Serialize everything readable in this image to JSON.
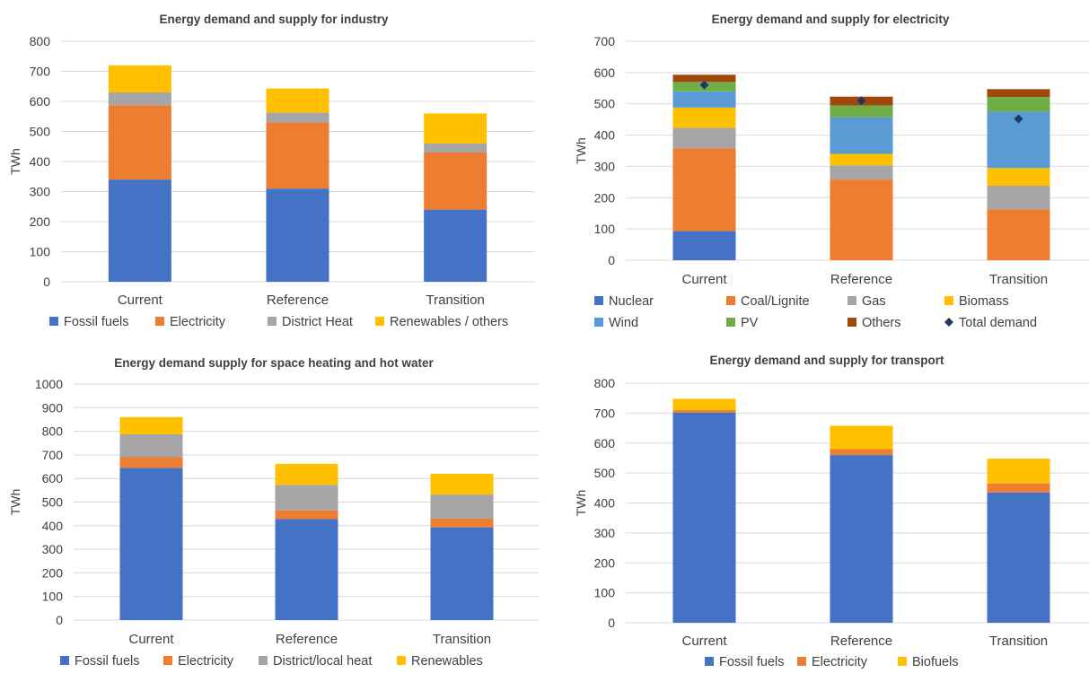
{
  "chart_data": [
    {
      "type": "bar",
      "stacked": true,
      "title": "Energy demand and supply for industry",
      "ylabel": "TWh",
      "ylim": [
        0,
        800
      ],
      "yticks": [
        0,
        100,
        200,
        300,
        400,
        500,
        600,
        700,
        800
      ],
      "grid": true,
      "legend_position": "bottom",
      "categories": [
        "Current",
        "Reference",
        "Transition"
      ],
      "series": [
        {
          "name": "Fossil fuels",
          "color": "#4472C4",
          "values": [
            340,
            310,
            240
          ]
        },
        {
          "name": "Electricity",
          "color": "#ED7D31",
          "values": [
            247,
            220,
            190
          ]
        },
        {
          "name": "District Heat",
          "color": "#A5A5A5",
          "values": [
            43,
            33,
            30
          ]
        },
        {
          "name": "Renewables / others",
          "color": "#FFC000",
          "values": [
            90,
            80,
            100
          ]
        }
      ]
    },
    {
      "type": "bar",
      "stacked": true,
      "title": "Energy demand and supply for electricity",
      "ylabel": "TWh",
      "ylim": [
        0,
        700
      ],
      "yticks": [
        0,
        100,
        200,
        300,
        400,
        500,
        600,
        700
      ],
      "grid": true,
      "legend_position": "bottom",
      "categories": [
        "Current",
        "Reference",
        "Transition"
      ],
      "series": [
        {
          "name": "Nuclear",
          "color": "#4472C4",
          "values": [
            93,
            0,
            0
          ]
        },
        {
          "name": "Coal/Lignite",
          "color": "#ED7D31",
          "values": [
            265,
            258,
            163
          ]
        },
        {
          "name": "Gas",
          "color": "#A5A5A5",
          "values": [
            65,
            45,
            75
          ]
        },
        {
          "name": "Biomass",
          "color": "#FFC000",
          "values": [
            65,
            37,
            57
          ]
        },
        {
          "name": "Wind",
          "color": "#5B9BD5",
          "values": [
            52,
            117,
            180
          ]
        },
        {
          "name": "PV",
          "color": "#70AD47",
          "values": [
            30,
            38,
            47
          ]
        },
        {
          "name": "Others",
          "color": "#9E480E",
          "values": [
            23,
            28,
            25
          ]
        }
      ],
      "markers": {
        "name": "Total demand",
        "color": "#203864",
        "values": [
          560,
          510,
          452
        ]
      }
    },
    {
      "type": "bar",
      "stacked": true,
      "title": "Energy demand supply for space heating and hot water",
      "ylabel": "TWh",
      "ylim": [
        0,
        1000
      ],
      "yticks": [
        0,
        100,
        200,
        300,
        400,
        500,
        600,
        700,
        800,
        900,
        1000
      ],
      "grid": true,
      "legend_position": "bottom",
      "categories": [
        "Current",
        "Reference",
        "Transition"
      ],
      "series": [
        {
          "name": "Fossil fuels",
          "color": "#4472C4",
          "values": [
            645,
            428,
            393
          ]
        },
        {
          "name": "Electricity",
          "color": "#ED7D31",
          "values": [
            45,
            37,
            37
          ]
        },
        {
          "name": "District/local heat",
          "color": "#A5A5A5",
          "values": [
            97,
            108,
            102
          ]
        },
        {
          "name": "Renewables",
          "color": "#FFC000",
          "values": [
            73,
            89,
            88
          ]
        }
      ]
    },
    {
      "type": "bar",
      "stacked": true,
      "title": "Energy demand and supply for transport",
      "ylabel": "TWh",
      "ylim": [
        0,
        800
      ],
      "yticks": [
        0,
        100,
        200,
        300,
        400,
        500,
        600,
        700,
        800
      ],
      "grid": true,
      "legend_position": "bottom",
      "categories": [
        "Current",
        "Reference",
        "Transition"
      ],
      "series": [
        {
          "name": "Fossil fuels",
          "color": "#4472C4",
          "values": [
            702,
            560,
            435
          ]
        },
        {
          "name": "Electricity",
          "color": "#ED7D31",
          "values": [
            8,
            20,
            30
          ]
        },
        {
          "name": "Biofuels",
          "color": "#FFC000",
          "values": [
            38,
            78,
            83
          ]
        }
      ]
    }
  ]
}
